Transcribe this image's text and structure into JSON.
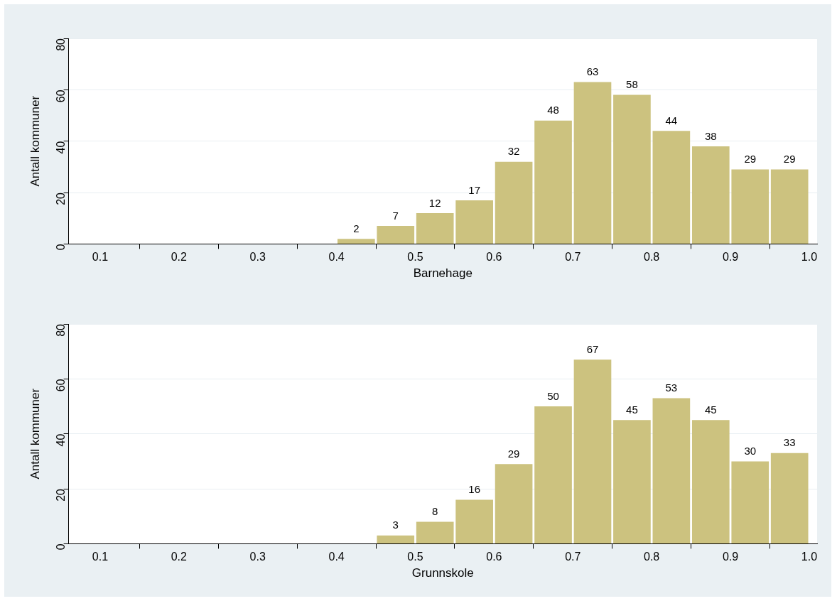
{
  "chart_data": [
    {
      "type": "histogram",
      "xlabel": "Barnehage",
      "ylabel": "Antall kommuner",
      "bins": [
        0.4,
        0.45,
        0.5,
        0.55,
        0.6,
        0.65,
        0.7,
        0.75,
        0.8,
        0.85,
        0.9,
        0.95,
        1.0
      ],
      "values": [
        2,
        7,
        12,
        17,
        32,
        48,
        63,
        58,
        44,
        38,
        29,
        29
      ],
      "color": "#ccc27f",
      "data_labels": true,
      "xlim": [
        0.06,
        1.01
      ],
      "xticks": [
        0.1,
        0.2,
        0.3,
        0.4,
        0.5,
        0.6,
        0.7,
        0.8,
        0.9,
        {
          "value": 1.0,
          "label": "1.0"
        }
      ],
      "ylim": [
        0,
        80
      ],
      "yticks": [
        0,
        20,
        40,
        60,
        80
      ],
      "grid": "y"
    },
    {
      "type": "histogram",
      "xlabel": "Grunnskole",
      "ylabel": "Antall kommuner",
      "bins": [
        0.45,
        0.5,
        0.55,
        0.6,
        0.65,
        0.7,
        0.75,
        0.8,
        0.85,
        0.9,
        0.95,
        1.0
      ],
      "values": [
        3,
        8,
        16,
        29,
        50,
        67,
        45,
        53,
        45,
        30,
        33
      ],
      "color": "#ccc27f",
      "data_labels": true,
      "xlim": [
        0.06,
        1.01
      ],
      "xticks": [
        0.1,
        0.2,
        0.3,
        0.4,
        0.5,
        0.6,
        0.7,
        0.8,
        0.9,
        {
          "value": 1.0,
          "label": "1.0"
        }
      ],
      "ylim": [
        0,
        80
      ],
      "yticks": [
        0,
        20,
        40,
        60,
        80
      ],
      "grid": "y"
    }
  ]
}
